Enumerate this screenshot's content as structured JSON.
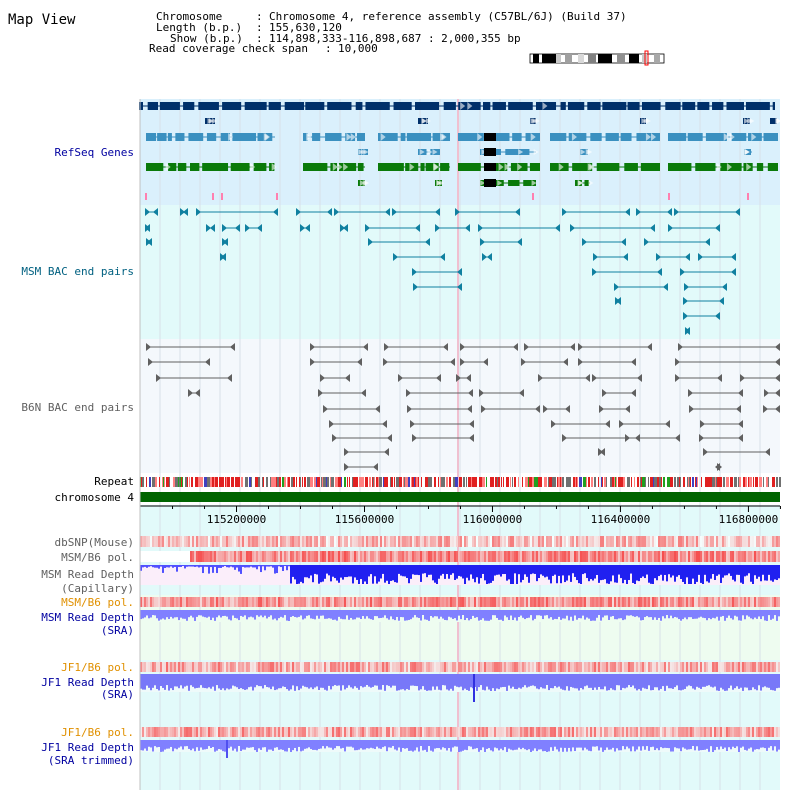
{
  "page_title": "Map View",
  "header": {
    "rows": [
      {
        "label": "Chromosome",
        "value": "Chromosome 4, reference assembly (C57BL/6J) (Build 37)"
      },
      {
        "label": "Length (b.p.)",
        "value": "155,630,120"
      },
      {
        "label": "Show (b.p.)",
        "value": "114,898,333-116,898,687 : 2,000,355 bp"
      },
      {
        "label": "Read coverage check span",
        "value": "10,000"
      }
    ]
  },
  "tracks": {
    "refseq": "RefSeq Genes",
    "msm_bac": "MSM BAC end pairs",
    "b6n_bac": "B6N BAC end pairs",
    "repeat": "Repeat",
    "chromosome": "chromosome 4",
    "dbsnp": "dbSNP(Mouse)",
    "msm_b6_pol_1": "MSM/B6 pol.",
    "msm_depth_cap_1": "MSM Read Depth",
    "msm_depth_cap_2": "(Capillary)",
    "msm_b6_pol_2": "MSM/B6 pol.",
    "msm_depth_sra_1": "MSM Read Depth",
    "msm_depth_sra_2": "(SRA)",
    "jf1_b6_pol_1": "JF1/B6 pol.",
    "jf1_depth_sra_1": "JF1 Read Depth",
    "jf1_depth_sra_2": "(SRA)",
    "jf1_b6_pol_2": "JF1/B6 pol.",
    "jf1_depth_trim_1": "JF1 Read Depth",
    "jf1_depth_trim_2": "(SRA trimmed)"
  },
  "axis": {
    "ticks": [
      {
        "value": 115200000,
        "label": "115200000"
      },
      {
        "value": 115600000,
        "label": "115600000"
      },
      {
        "value": 116000000,
        "label": "116000000"
      },
      {
        "value": 116400000,
        "label": "116400000"
      },
      {
        "value": 116800000,
        "label": "116800000"
      }
    ],
    "start": 114898333,
    "end": 116898687
  },
  "colors": {
    "gene_dark": "#00306a",
    "gene_mid": "#3a90c0",
    "gene_green": "#0a7a0a",
    "refseq_bg": "#daf0fc",
    "bac_bg": "#e2fafa",
    "b6n_bg": "#f4f8fc",
    "chrom_green": "#006400",
    "depth_blue": "#2424ff",
    "depth_light": "#7878ff",
    "pol_red": "#f05050",
    "label_blue": "#0000a0",
    "label_teal": "#006080",
    "label_gray": "#606060",
    "label_orange": "#e09000"
  },
  "icons": [
    "chromosome-ideogram-icon"
  ]
}
